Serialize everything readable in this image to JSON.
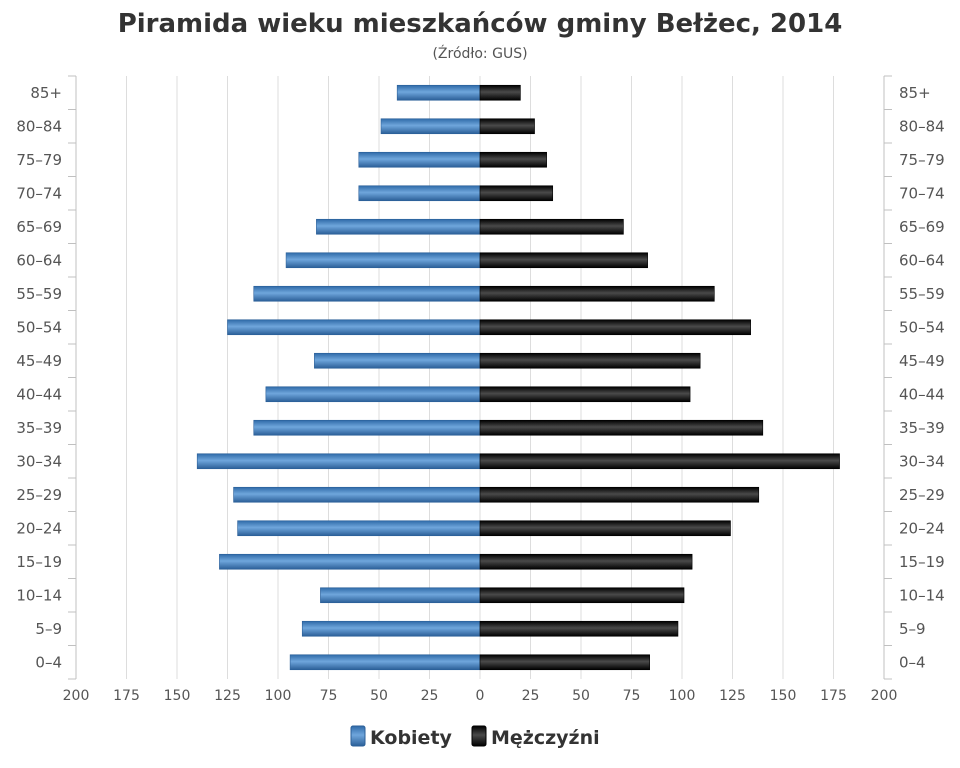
{
  "chart_data": {
    "type": "bar",
    "orientation": "horizontal-population-pyramid",
    "title": "Piramida wieku mieszkańców gminy Bełżec, 2014",
    "subtitle": "(Źródło: GUS)",
    "categories": [
      "85+",
      "80–84",
      "75–79",
      "70–74",
      "65–69",
      "60–64",
      "55–59",
      "50–54",
      "45–49",
      "40–44",
      "35–39",
      "30–34",
      "25–29",
      "20–24",
      "15–19",
      "10–14",
      "5–9",
      "0–4"
    ],
    "series": [
      {
        "name": "Kobiety",
        "color": "#4a86c5",
        "values": [
          41,
          49,
          60,
          60,
          81,
          96,
          112,
          125,
          82,
          106,
          112,
          140,
          122,
          120,
          129,
          79,
          88,
          94
        ]
      },
      {
        "name": "Mężczyźni",
        "color": "#222222",
        "values": [
          20,
          27,
          33,
          36,
          71,
          83,
          116,
          134,
          109,
          104,
          140,
          178,
          138,
          124,
          105,
          101,
          98,
          84
        ]
      }
    ],
    "x_ticks": [
      "200",
      "175",
      "150",
      "125",
      "100",
      "75",
      "50",
      "25",
      "0",
      "25",
      "50",
      "75",
      "100",
      "125",
      "150",
      "175",
      "200"
    ],
    "xlim": [
      -200,
      200
    ],
    "grid": true,
    "legend_position": "bottom-center"
  }
}
